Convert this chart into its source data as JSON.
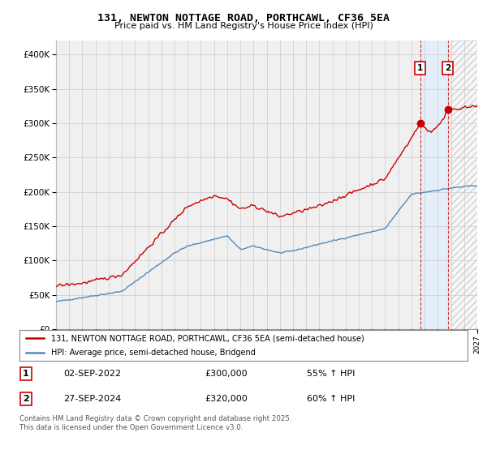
{
  "title": "131, NEWTON NOTTAGE ROAD, PORTHCAWL, CF36 5EA",
  "subtitle": "Price paid vs. HM Land Registry's House Price Index (HPI)",
  "legend_line1": "131, NEWTON NOTTAGE ROAD, PORTHCAWL, CF36 5EA (semi-detached house)",
  "legend_line2": "HPI: Average price, semi-detached house, Bridgend",
  "sale1_label": "1",
  "sale1_date": "02-SEP-2022",
  "sale1_price": "£300,000",
  "sale1_hpi": "55% ↑ HPI",
  "sale2_label": "2",
  "sale2_date": "27-SEP-2024",
  "sale2_price": "£320,000",
  "sale2_hpi": "60% ↑ HPI",
  "footer": "Contains HM Land Registry data © Crown copyright and database right 2025.\nThis data is licensed under the Open Government Licence v3.0.",
  "red_color": "#cc0000",
  "blue_color": "#5588bb",
  "background_color": "#ffffff",
  "plot_bg_color": "#f0f0f0",
  "grid_color": "#cccccc",
  "sale1_year": 2022.67,
  "sale1_value": 300000,
  "sale2_year": 2024.75,
  "sale2_value": 320000,
  "future_start": 2025.0,
  "ylim_max": 420000,
  "ylim_min": 0,
  "xlim_min": 1995,
  "xlim_max": 2027
}
